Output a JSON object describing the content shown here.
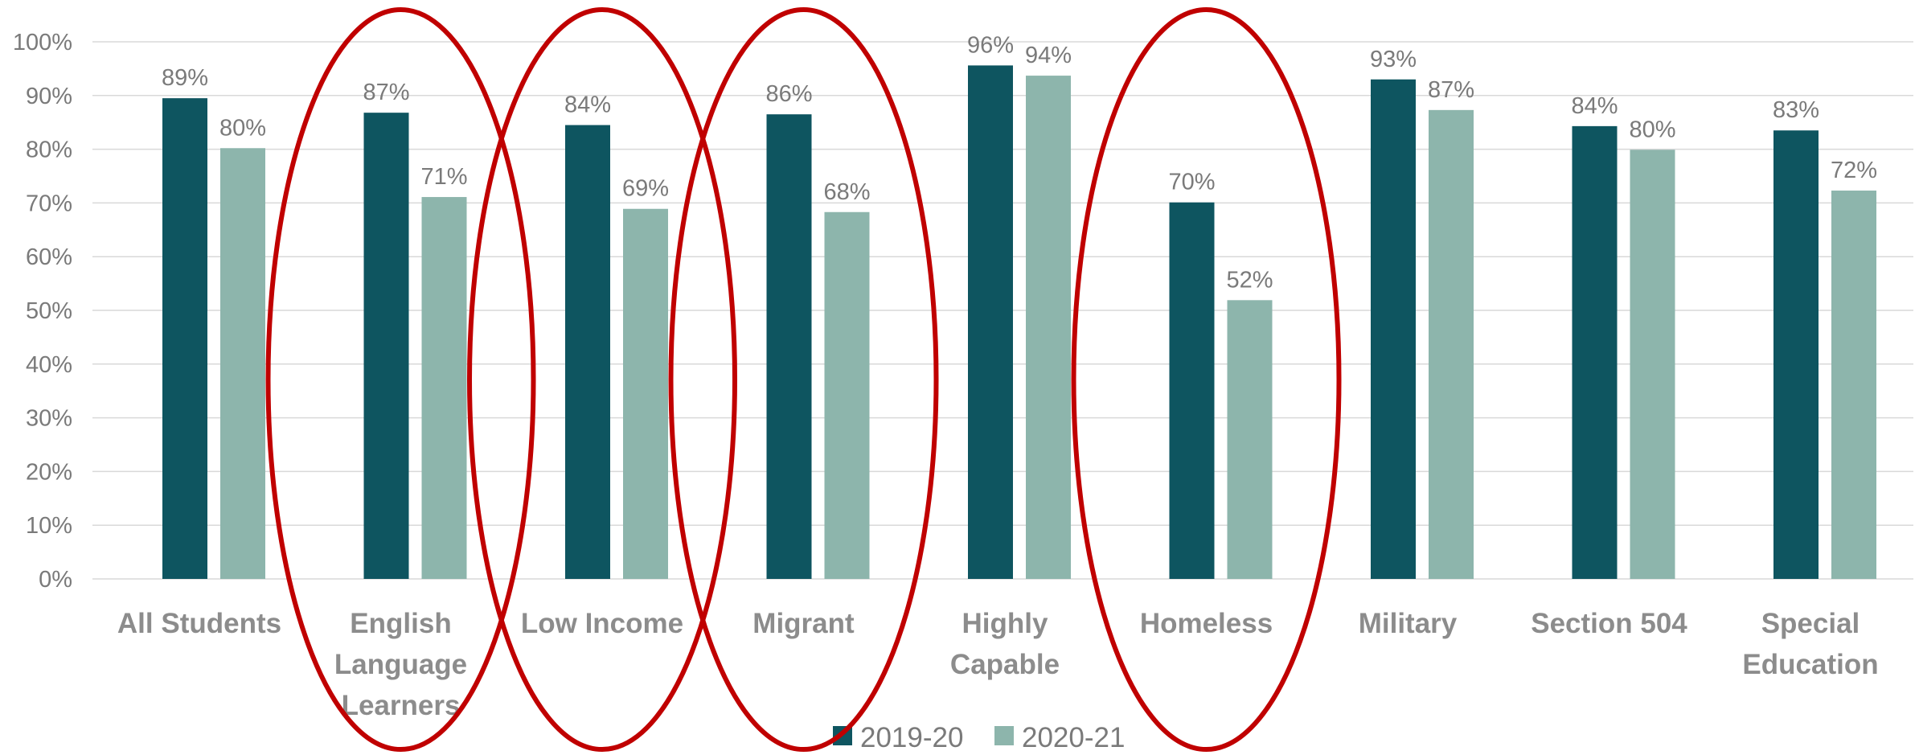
{
  "chart_data": {
    "type": "bar",
    "categories": [
      [
        "All Students"
      ],
      [
        "English",
        "Language",
        "Learners"
      ],
      [
        "Low Income"
      ],
      [
        "Migrant"
      ],
      [
        "Highly",
        "Capable"
      ],
      [
        "Homeless"
      ],
      [
        "Military"
      ],
      [
        "Section 504"
      ],
      [
        "Special",
        "Education"
      ]
    ],
    "series": [
      {
        "name": "2019-20",
        "color": "#0e5560",
        "values": [
          89.5,
          86.8,
          84.5,
          86.5,
          95.6,
          70.1,
          93.0,
          84.3,
          83.5
        ],
        "labels": [
          "89%",
          "87%",
          "84%",
          "86%",
          "96%",
          "70%",
          "93%",
          "84%",
          "83%"
        ]
      },
      {
        "name": "2020-21",
        "color": "#8db5ac",
        "values": [
          80.2,
          71.1,
          68.9,
          68.3,
          93.7,
          51.9,
          87.3,
          79.9,
          72.3
        ],
        "labels": [
          "80%",
          "71%",
          "69%",
          "68%",
          "94%",
          "52%",
          "87%",
          "80%",
          "72%"
        ]
      }
    ],
    "ylim": [
      0,
      100
    ],
    "yticks": [
      "0%",
      "10%",
      "20%",
      "30%",
      "40%",
      "50%",
      "60%",
      "70%",
      "80%",
      "90%",
      "100%"
    ],
    "grid": true,
    "legend": "bottom-center",
    "highlighted_categories": [
      1,
      2,
      3,
      5
    ],
    "highlight_color": "#c00000"
  }
}
